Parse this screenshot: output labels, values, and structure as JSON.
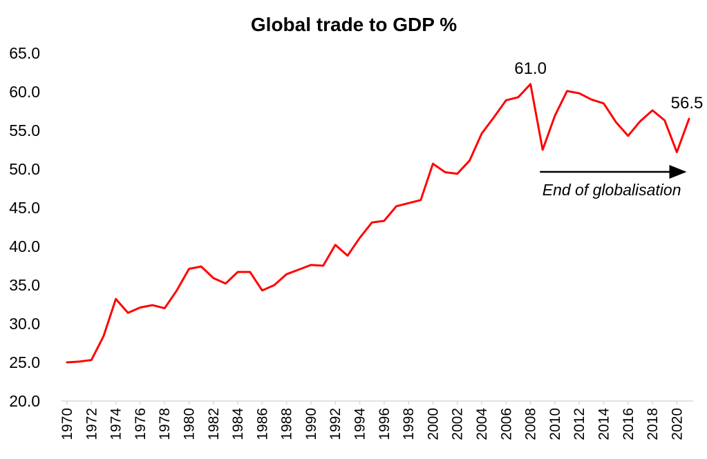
{
  "chart_data": {
    "type": "line",
    "title": "Global trade to GDP %",
    "xlabel": "",
    "ylabel": "",
    "ylim": [
      20,
      65
    ],
    "yticks": [
      "20.0",
      "25.0",
      "30.0",
      "35.0",
      "40.0",
      "45.0",
      "50.0",
      "55.0",
      "60.0",
      "65.0"
    ],
    "xticks": [
      "1970",
      "1972",
      "1974",
      "1976",
      "1978",
      "1980",
      "1982",
      "1984",
      "1986",
      "1988",
      "1990",
      "1992",
      "1994",
      "1996",
      "1998",
      "2000",
      "2002",
      "2004",
      "2006",
      "2008",
      "2010",
      "2012",
      "2014",
      "2016",
      "2018",
      "2020"
    ],
    "grid": false,
    "legend": "none",
    "line_color": "#ff0000",
    "x": [
      1970,
      1971,
      1972,
      1973,
      1974,
      1975,
      1976,
      1977,
      1978,
      1979,
      1980,
      1981,
      1982,
      1983,
      1984,
      1985,
      1986,
      1987,
      1988,
      1989,
      1990,
      1991,
      1992,
      1993,
      1994,
      1995,
      1996,
      1997,
      1998,
      1999,
      2000,
      2001,
      2002,
      2003,
      2004,
      2005,
      2006,
      2007,
      2008,
      2009,
      2010,
      2011,
      2012,
      2013,
      2014,
      2015,
      2016,
      2017,
      2018,
      2019,
      2020,
      2021
    ],
    "series": [
      {
        "values": [
          25.0,
          25.1,
          25.3,
          28.4,
          33.2,
          31.4,
          32.1,
          32.4,
          32.0,
          34.3,
          37.1,
          37.4,
          35.9,
          35.2,
          36.7,
          36.7,
          34.3,
          35.0,
          36.4,
          37.0,
          37.6,
          37.5,
          40.2,
          38.8,
          41.1,
          43.1,
          43.3,
          45.2,
          45.6,
          46.0,
          50.7,
          49.6,
          49.4,
          51.1,
          54.6,
          56.7,
          58.9,
          59.3,
          61.0,
          52.5,
          56.9,
          60.1,
          59.8,
          59.0,
          58.5,
          56.1,
          54.3,
          56.2,
          57.6,
          56.3,
          52.2,
          56.5
        ]
      }
    ],
    "data_labels": [
      {
        "x": 2008,
        "text": "61.0"
      },
      {
        "x": 2021,
        "text": "56.5"
      }
    ],
    "annotation": {
      "text": "End of globalisation",
      "arrow_from_x": 2009,
      "arrow_to_x": 2021
    }
  }
}
